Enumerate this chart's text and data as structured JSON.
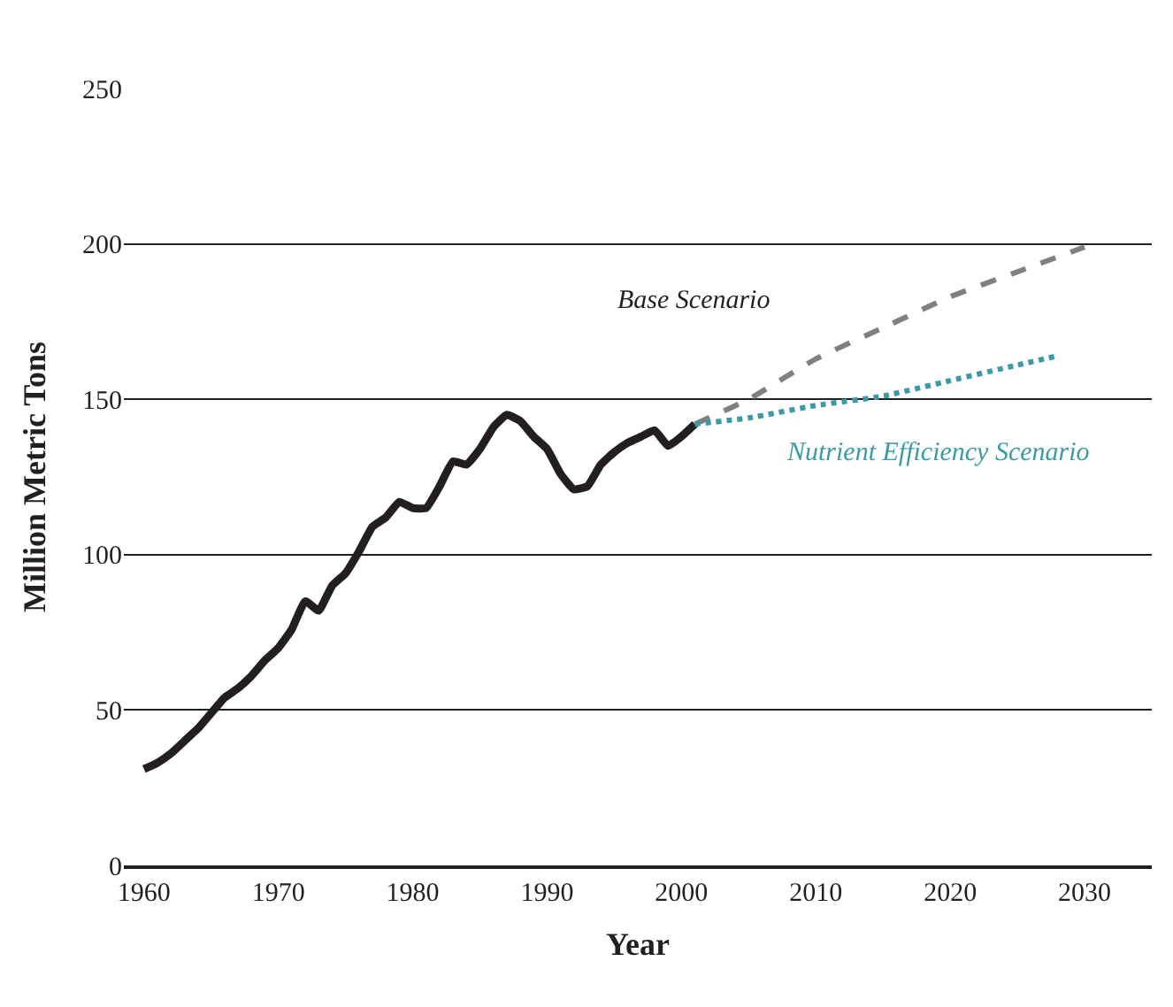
{
  "chart_data": {
    "type": "line",
    "xlabel": "Year",
    "ylabel": "Million Metric Tons",
    "xlim": [
      1958.5,
      2035
    ],
    "xticks": [
      1960,
      1970,
      1980,
      1990,
      2000,
      2010,
      2020,
      2030
    ],
    "ylim": [
      0,
      250
    ],
    "yticks": [
      0,
      50,
      100,
      150,
      200,
      250
    ],
    "grid": "y",
    "legend": false,
    "series": [
      {
        "color": "#231f20",
        "line_style": "solid",
        "x": [
          1960,
          1961,
          1962,
          1963,
          1964,
          1965,
          1966,
          1967,
          1968,
          1969,
          1970,
          1971,
          1972,
          1973,
          1974,
          1975,
          1976,
          1977,
          1978,
          1979,
          1980,
          1981,
          1982,
          1983,
          1984,
          1985,
          1986,
          1987,
          1988,
          1989,
          1990,
          1991,
          1992,
          1993,
          1994,
          1995,
          1996,
          1997,
          1998,
          1999,
          2000,
          2001
        ],
        "values": [
          31,
          33,
          36,
          40,
          44,
          49,
          54,
          57,
          61,
          66,
          70,
          76,
          85,
          82,
          90,
          94,
          101,
          109,
          112,
          117,
          115,
          115,
          122,
          130,
          129,
          134,
          141,
          145,
          143,
          138,
          134,
          126,
          121,
          122,
          129,
          133,
          136,
          138,
          140,
          135,
          138,
          142
        ]
      },
      {
        "name": "Base Scenario",
        "color": "#808080",
        "line_style": "dashed",
        "x": [
          2001,
          2005,
          2010,
          2015,
          2020,
          2025,
          2030
        ],
        "values": [
          142,
          150,
          163,
          173,
          183,
          191,
          199
        ]
      },
      {
        "name": "Nutrient Efficiency Scenario",
        "color": "#3b9aa6",
        "line_style": "dotted",
        "x": [
          2001,
          2005,
          2010,
          2015,
          2020,
          2025,
          2028
        ],
        "values": [
          142,
          144,
          148,
          151,
          156,
          161,
          164
        ]
      }
    ]
  }
}
